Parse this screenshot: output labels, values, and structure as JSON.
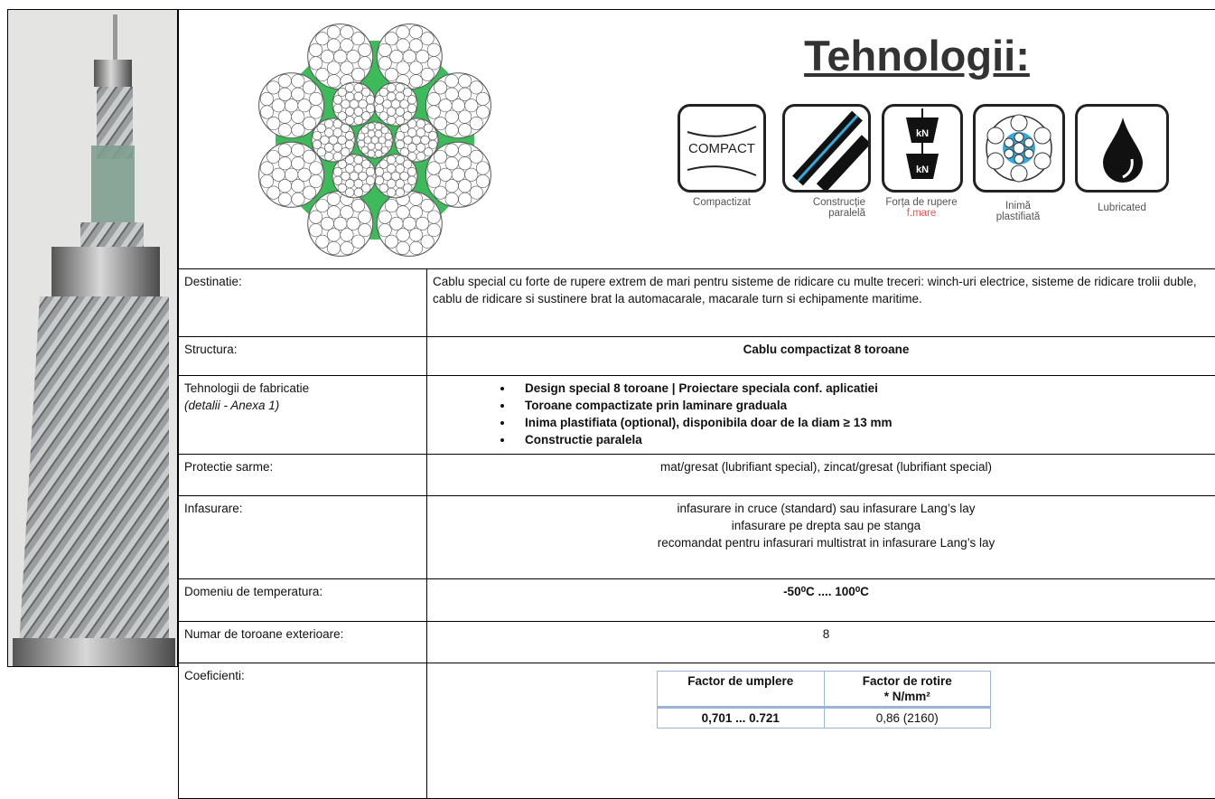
{
  "header": {
    "title": "Tehnologii:",
    "icons": [
      {
        "symbol": "COMPACT",
        "label": "Compactizat"
      },
      {
        "label": "Construcție paralelă"
      },
      {
        "symbols": [
          "kN",
          "kN"
        ],
        "label": "Forța de rupere",
        "label_highlight": "f.mare"
      },
      {
        "label": "Inimă plastifiată"
      },
      {
        "label": "Lubricated"
      }
    ]
  },
  "table": {
    "rows": [
      {
        "label": "Destinatie:",
        "value": "Cablu special cu forte de rupere extrem de mari pentru sisteme de ridicare cu multe treceri: winch-uri electrice, sisteme de ridicare trolii duble, cablu de ridicare si sustinere brat la automacarale, macarale turn si echipamente maritime."
      },
      {
        "label": "Structura:",
        "value": "Cablu compactizat 8 toroane"
      },
      {
        "label": "Tehnologii de fabricatie",
        "note": "(detalii - Anexa 1)",
        "bullets": [
          "Design special 8 toroane | Proiectare speciala conf. aplicatiei",
          "Toroane compactizate prin laminare graduala",
          "Inima plastifiata (optional), disponibila doar de la diam ≥ 13 mm",
          "Constructie paralela"
        ]
      },
      {
        "label": "Protectie sarme:",
        "value": "mat/gresat (lubrifiant special), zincat/gresat (lubrifiant special)"
      },
      {
        "label": "Infasurare:",
        "lines": [
          "infasurare in cruce (standard) sau infasurare Lang’s lay",
          "infasurare pe drepta sau pe stanga",
          "recomandat pentru infasurari multistrat in infasurare Lang’s lay"
        ]
      },
      {
        "label": "Domeniu de temperatura:",
        "value": "-50⁰C .... 100⁰C"
      },
      {
        "label": "Numar de toroane exterioare:",
        "value": "8"
      },
      {
        "label": "Coeficienti:",
        "subtable": {
          "headers": [
            [
              "Factor de umplere"
            ],
            [
              "Factor de rotire",
              "* N/mm²"
            ]
          ],
          "rows": [
            [
              "0,701 ... 0.721",
              "0,86 (2160)"
            ]
          ]
        }
      }
    ]
  }
}
